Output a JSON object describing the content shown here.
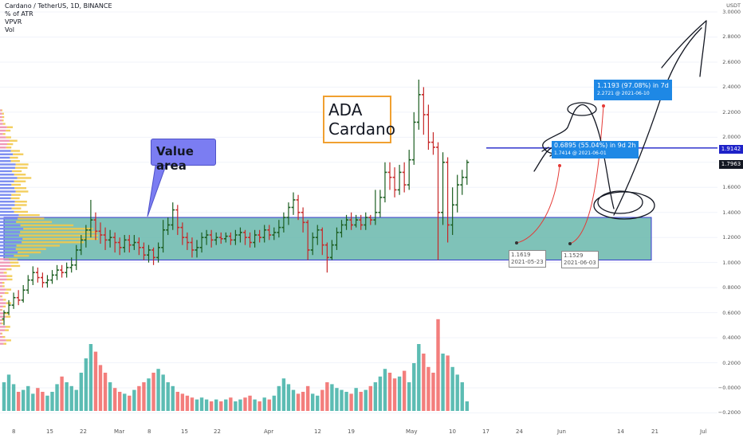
{
  "header": {
    "symbol_line": "Cardano / TetherUS, 1D, BINANCE",
    "indicators": [
      "% of ATR",
      "VPVR",
      "Vol"
    ]
  },
  "axis": {
    "unit": "USDT",
    "y_ticks": [
      "3.0000",
      "2.8000",
      "2.6000",
      "2.4000",
      "2.2000",
      "2.0000",
      "1.8000",
      "1.6000",
      "1.4000",
      "1.2000",
      "1.0000",
      "0.8000",
      "0.6000",
      "0.4000",
      "0.2000",
      "−0.0000",
      "−0.2000"
    ],
    "x_ticks": [
      "8",
      "15",
      "22",
      "Mar",
      "8",
      "15",
      "22",
      "Apr",
      "12",
      "19",
      "May",
      "10",
      "17",
      "24",
      "Jun",
      "14",
      "21",
      "Jul"
    ],
    "price_tags": [
      {
        "text": "1.9142",
        "color": "#1e22c8"
      },
      {
        "text": "1.7963",
        "color": "#131722"
      }
    ]
  },
  "annotations": {
    "ada_title": [
      "ADA",
      "Cardano"
    ],
    "value_area": "Value area",
    "projection_1": "0.6895 (55.04%) in 9d 2h",
    "projection_1_sub": "1.7414 @ 2021-06-01",
    "projection_2": "1.1193 (97.08%) in 7d",
    "projection_2_sub": "2.2721 @ 2021-06-10",
    "low_1": "1.1619",
    "low_1_date": "2021-05-23",
    "low_2": "1.1529",
    "low_2_date": "2021-06-03"
  },
  "colors": {
    "up": "#26a69a",
    "down": "#ef5350",
    "candle_up": "#1b5e20",
    "candle_down": "#c62828",
    "value_area_fill": "#5fb3a6",
    "value_area_border": "#3a3ad0",
    "vpvr_yellow": "#f2c94c",
    "vpvr_blue": "#7b8cf0",
    "vpvr_pink": "#f09ab8",
    "resistance_line": "#1e22c8"
  },
  "chart_data": {
    "type": "candlestick",
    "price_range": [
      -0.25,
      3.05
    ],
    "value_area": {
      "low": 1.02,
      "high": 1.36
    },
    "resistance": 1.9142,
    "candles": [
      [
        0.55,
        0.6,
        0.5,
        0.62
      ],
      [
        0.6,
        0.66,
        0.58,
        0.7
      ],
      [
        0.66,
        0.72,
        0.63,
        0.76
      ],
      [
        0.72,
        0.7,
        0.66,
        0.78
      ],
      [
        0.7,
        0.78,
        0.68,
        0.82
      ],
      [
        0.78,
        0.86,
        0.75,
        0.9
      ],
      [
        0.86,
        0.92,
        0.82,
        0.97
      ],
      [
        0.92,
        0.88,
        0.84,
        0.96
      ],
      [
        0.88,
        0.84,
        0.8,
        0.92
      ],
      [
        0.84,
        0.86,
        0.8,
        0.9
      ],
      [
        0.86,
        0.9,
        0.83,
        0.94
      ],
      [
        0.9,
        0.94,
        0.86,
        0.98
      ],
      [
        0.94,
        0.92,
        0.88,
        0.98
      ],
      [
        0.92,
        0.96,
        0.88,
        1.0
      ],
      [
        0.96,
        0.98,
        0.92,
        1.04
      ],
      [
        0.98,
        1.1,
        0.94,
        1.14
      ],
      [
        1.1,
        1.18,
        1.06,
        1.22
      ],
      [
        1.18,
        1.26,
        1.12,
        1.3
      ],
      [
        1.26,
        1.34,
        1.2,
        1.5
      ],
      [
        1.34,
        1.25,
        1.18,
        1.4
      ],
      [
        1.25,
        1.22,
        1.15,
        1.32
      ],
      [
        1.22,
        1.18,
        1.1,
        1.28
      ],
      [
        1.18,
        1.2,
        1.12,
        1.26
      ],
      [
        1.2,
        1.16,
        1.08,
        1.24
      ],
      [
        1.16,
        1.12,
        1.06,
        1.2
      ],
      [
        1.12,
        1.18,
        1.08,
        1.22
      ],
      [
        1.18,
        1.14,
        1.08,
        1.22
      ],
      [
        1.14,
        1.16,
        1.1,
        1.22
      ],
      [
        1.16,
        1.12,
        1.06,
        1.2
      ],
      [
        1.12,
        1.06,
        1.02,
        1.16
      ],
      [
        1.06,
        1.1,
        1.0,
        1.14
      ],
      [
        1.1,
        1.04,
        0.98,
        1.12
      ],
      [
        1.04,
        1.12,
        1.0,
        1.16
      ],
      [
        1.12,
        1.26,
        1.08,
        1.34
      ],
      [
        1.26,
        1.3,
        1.22,
        1.36
      ],
      [
        1.3,
        1.42,
        1.26,
        1.48
      ],
      [
        1.42,
        1.28,
        1.22,
        1.46
      ],
      [
        1.28,
        1.2,
        1.14,
        1.32
      ],
      [
        1.2,
        1.16,
        1.1,
        1.24
      ],
      [
        1.16,
        1.1,
        1.04,
        1.2
      ],
      [
        1.1,
        1.12,
        1.04,
        1.18
      ],
      [
        1.12,
        1.2,
        1.08,
        1.24
      ],
      [
        1.2,
        1.22,
        1.14,
        1.26
      ],
      [
        1.22,
        1.18,
        1.12,
        1.26
      ],
      [
        1.18,
        1.2,
        1.14,
        1.24
      ],
      [
        1.2,
        1.19,
        1.15,
        1.24
      ],
      [
        1.19,
        1.21,
        1.16,
        1.24
      ],
      [
        1.21,
        1.18,
        1.14,
        1.24
      ],
      [
        1.18,
        1.22,
        1.14,
        1.26
      ],
      [
        1.22,
        1.24,
        1.16,
        1.28
      ],
      [
        1.24,
        1.2,
        1.14,
        1.26
      ],
      [
        1.2,
        1.16,
        1.12,
        1.24
      ],
      [
        1.16,
        1.22,
        1.12,
        1.26
      ],
      [
        1.22,
        1.2,
        1.16,
        1.26
      ],
      [
        1.2,
        1.26,
        1.16,
        1.3
      ],
      [
        1.26,
        1.22,
        1.18,
        1.3
      ],
      [
        1.22,
        1.24,
        1.18,
        1.28
      ],
      [
        1.24,
        1.28,
        1.2,
        1.34
      ],
      [
        1.28,
        1.36,
        1.24,
        1.4
      ],
      [
        1.36,
        1.44,
        1.3,
        1.48
      ],
      [
        1.44,
        1.5,
        1.38,
        1.56
      ],
      [
        1.5,
        1.4,
        1.34,
        1.54
      ],
      [
        1.4,
        1.32,
        1.24,
        1.44
      ],
      [
        1.32,
        1.1,
        1.02,
        1.34
      ],
      [
        1.1,
        1.2,
        1.06,
        1.24
      ],
      [
        1.2,
        1.26,
        1.14,
        1.3
      ],
      [
        1.26,
        1.14,
        1.06,
        1.28
      ],
      [
        1.14,
        1.04,
        0.92,
        1.16
      ],
      [
        1.04,
        1.14,
        1.02,
        1.18
      ],
      [
        1.14,
        1.24,
        1.1,
        1.28
      ],
      [
        1.24,
        1.3,
        1.2,
        1.34
      ],
      [
        1.3,
        1.34,
        1.26,
        1.38
      ],
      [
        1.34,
        1.3,
        1.26,
        1.4
      ],
      [
        1.3,
        1.34,
        1.28,
        1.38
      ],
      [
        1.34,
        1.3,
        1.26,
        1.38
      ],
      [
        1.3,
        1.36,
        1.26,
        1.4
      ],
      [
        1.36,
        1.34,
        1.3,
        1.38
      ],
      [
        1.34,
        1.4,
        1.3,
        1.58
      ],
      [
        1.4,
        1.52,
        1.36,
        1.58
      ],
      [
        1.52,
        1.72,
        1.48,
        1.8
      ],
      [
        1.72,
        1.68,
        1.58,
        1.8
      ],
      [
        1.68,
        1.58,
        1.52,
        1.76
      ],
      [
        1.58,
        1.72,
        1.54,
        1.78
      ],
      [
        1.72,
        1.62,
        1.56,
        1.8
      ],
      [
        1.62,
        1.82,
        1.58,
        1.9
      ],
      [
        1.82,
        2.12,
        1.78,
        2.2
      ],
      [
        2.12,
        2.34,
        2.06,
        2.46
      ],
      [
        2.34,
        2.18,
        2.02,
        2.4
      ],
      [
        2.18,
        1.96,
        1.9,
        2.26
      ],
      [
        1.96,
        1.92,
        1.86,
        2.04
      ],
      [
        1.92,
        1.4,
        1.02,
        1.96
      ],
      [
        1.4,
        1.8,
        1.3,
        1.88
      ],
      [
        1.8,
        1.3,
        1.16,
        1.84
      ],
      [
        1.3,
        1.46,
        1.22,
        1.6
      ],
      [
        1.46,
        1.62,
        1.4,
        1.7
      ],
      [
        1.62,
        1.68,
        1.54,
        1.74
      ],
      [
        1.68,
        1.8,
        1.62,
        1.82
      ]
    ],
    "volume": [
      0.3,
      0.38,
      0.28,
      0.2,
      0.22,
      0.26,
      0.18,
      0.24,
      0.2,
      0.16,
      0.2,
      0.28,
      0.36,
      0.3,
      0.26,
      0.22,
      0.4,
      0.55,
      0.7,
      0.62,
      0.48,
      0.4,
      0.3,
      0.24,
      0.2,
      0.18,
      0.16,
      0.22,
      0.26,
      0.3,
      0.34,
      0.4,
      0.44,
      0.38,
      0.3,
      0.26,
      0.2,
      0.18,
      0.16,
      0.14,
      0.12,
      0.14,
      0.12,
      0.1,
      0.12,
      0.1,
      0.12,
      0.14,
      0.1,
      0.12,
      0.14,
      0.16,
      0.12,
      0.1,
      0.14,
      0.12,
      0.16,
      0.26,
      0.34,
      0.28,
      0.22,
      0.18,
      0.2,
      0.26,
      0.18,
      0.16,
      0.22,
      0.3,
      0.28,
      0.24,
      0.22,
      0.2,
      0.18,
      0.24,
      0.2,
      0.22,
      0.26,
      0.3,
      0.36,
      0.44,
      0.4,
      0.34,
      0.36,
      0.42,
      0.3,
      0.5,
      0.7,
      0.6,
      0.46,
      0.4,
      0.96,
      0.6,
      0.58,
      0.46,
      0.38,
      0.3,
      0.1
    ]
  }
}
